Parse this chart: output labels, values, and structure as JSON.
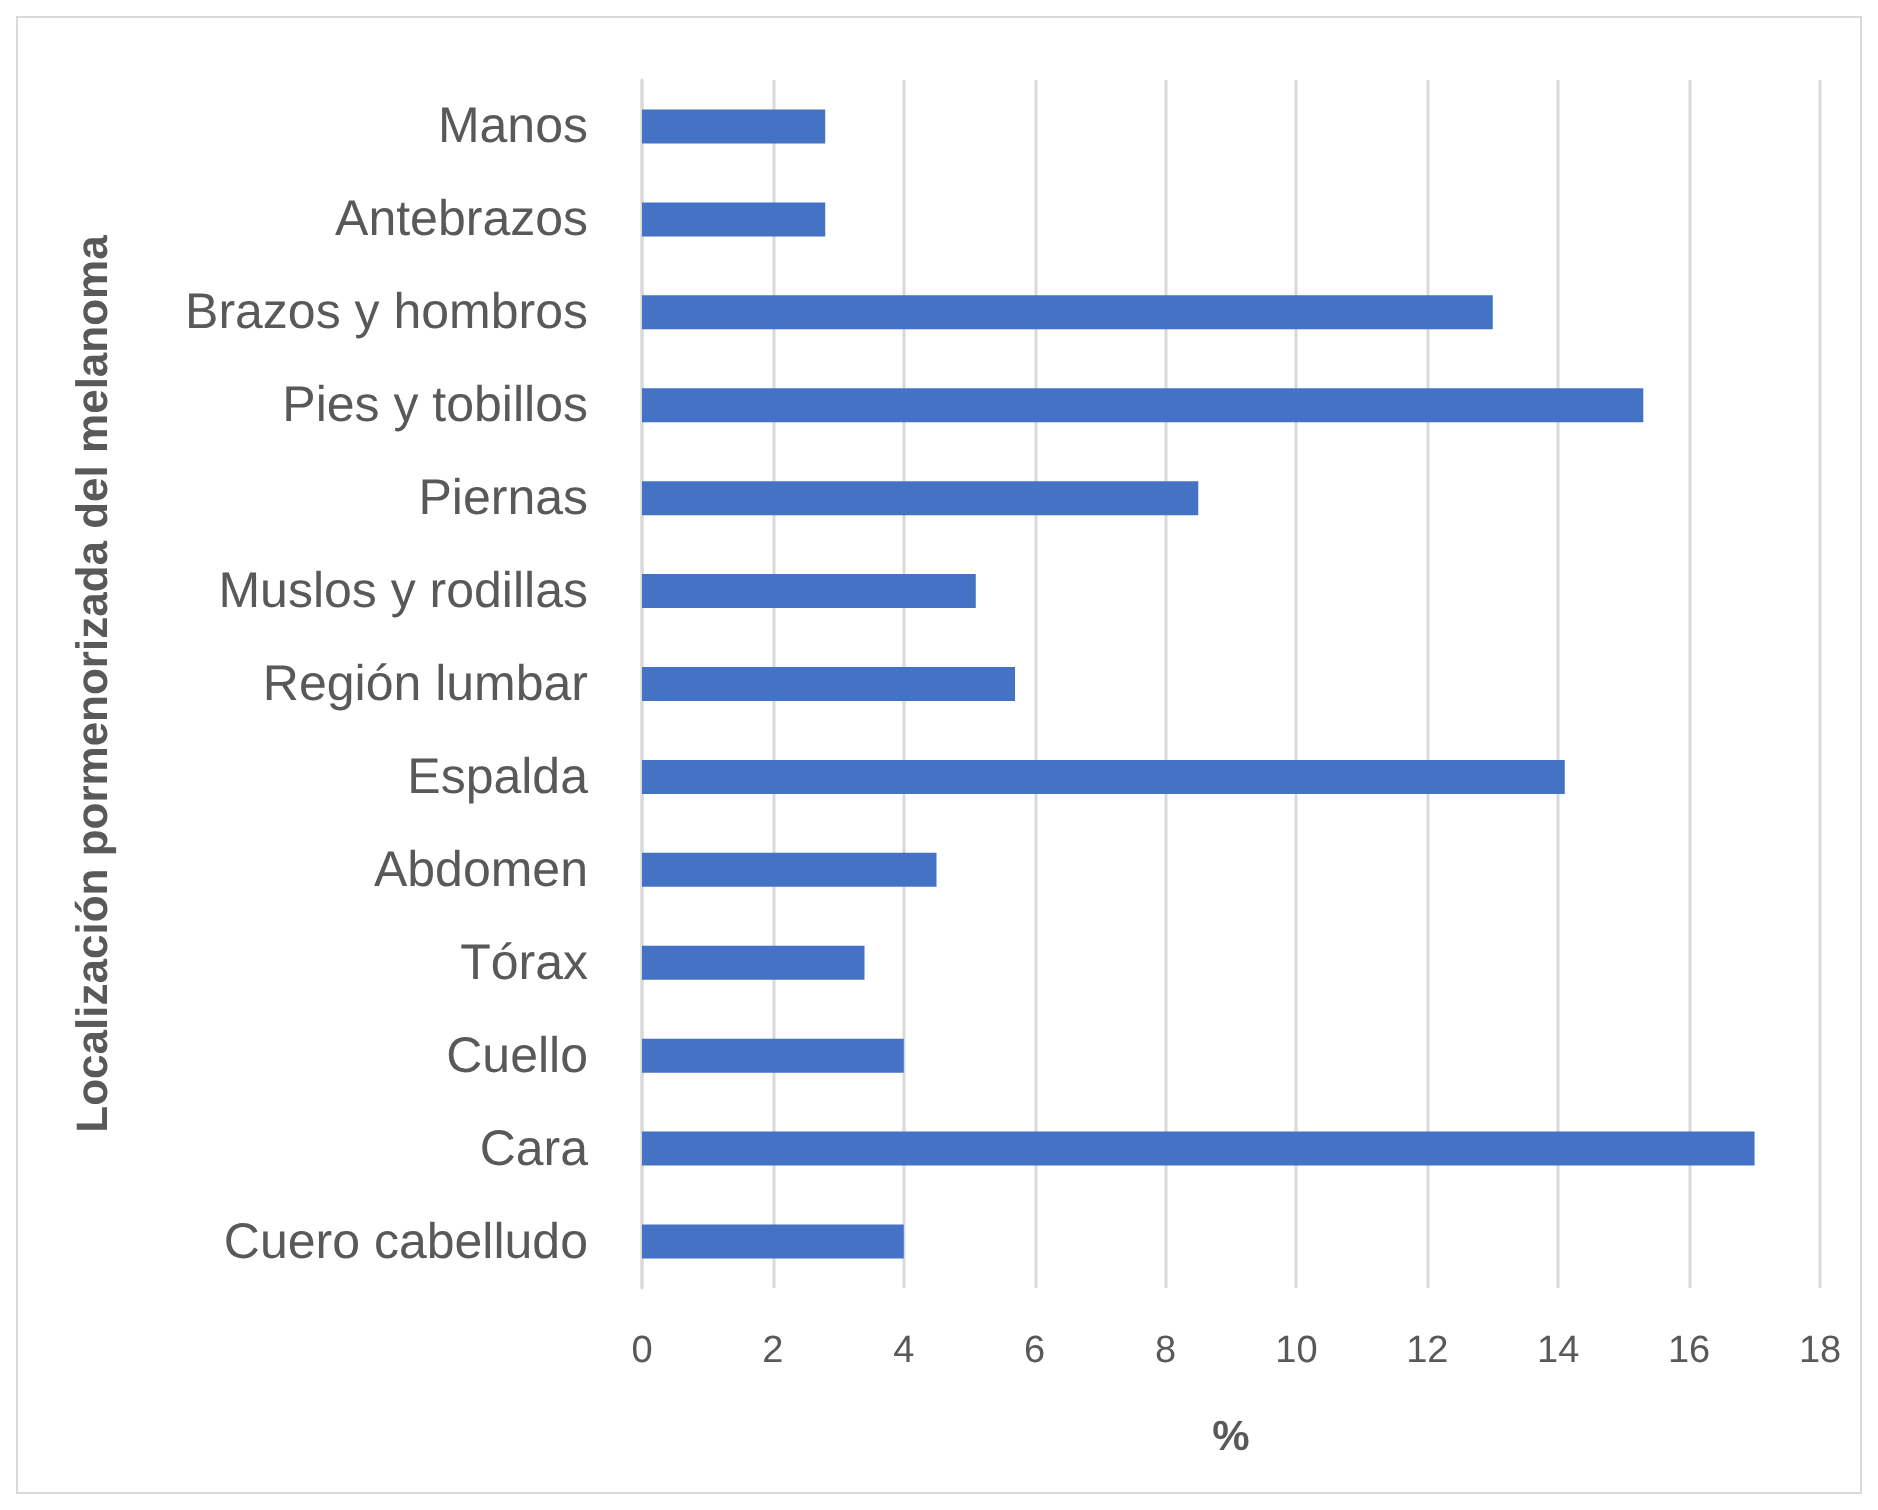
{
  "chart_data": {
    "type": "bar",
    "orientation": "horizontal",
    "xlabel": "%",
    "ylabel": "Localización pormenorizada del melanoma",
    "categories": [
      "Manos",
      "Antebrazos",
      "Brazos y hombros",
      "Pies y tobillos",
      "Piernas",
      "Muslos y rodillas",
      "Región lumbar",
      "Espalda",
      "Abdomen",
      "Tórax",
      "Cuello",
      "Cara",
      "Cuero cabelludo"
    ],
    "values": [
      2.8,
      2.8,
      13.0,
      15.3,
      8.5,
      5.1,
      5.7,
      14.1,
      4.5,
      3.4,
      4.0,
      17.0,
      4.0
    ],
    "color": "#4472c4",
    "xlim": [
      0,
      18
    ],
    "xticks": [
      0,
      2,
      4,
      6,
      8,
      10,
      12,
      14,
      16,
      18
    ],
    "grid": "x"
  }
}
